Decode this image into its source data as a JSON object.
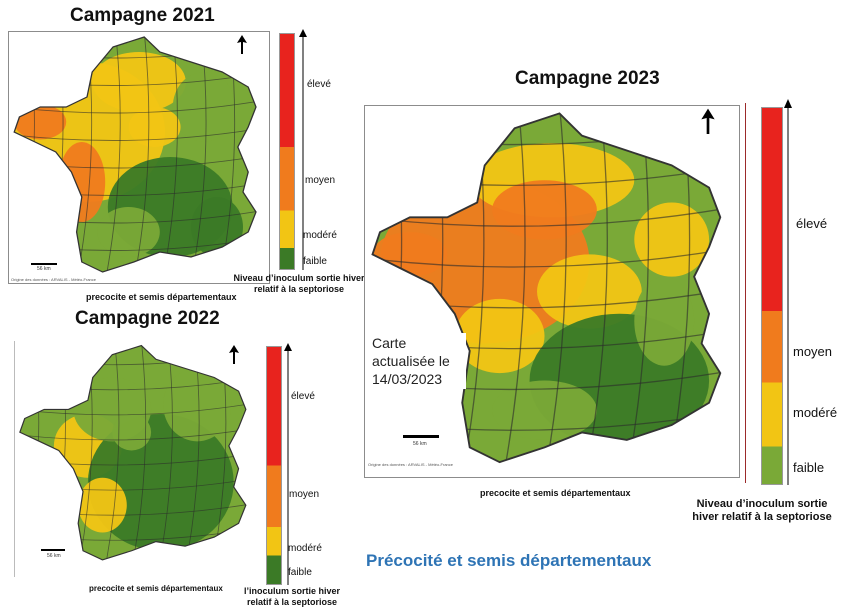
{
  "colors": {
    "eleve": "#e8231e",
    "moyen": "#f07b1d",
    "modere": "#f2c514",
    "faible_light": "#7aa937",
    "faible_dark": "#3b7a26",
    "footer": "#2e74b5"
  },
  "icons": {
    "north_arrow": "north-arrow-icon"
  },
  "legend_levels": [
    "élevé",
    "moyen",
    "modéré",
    "faible"
  ],
  "maps": [
    {
      "title": "Campagne 2021",
      "caption": "precocite et semis départementaux",
      "credit": "Origine des données : ARVALIS - Météo-France",
      "scale": "56 km",
      "legend": {
        "high": "élevé",
        "medium": "moyen",
        "moderate": "modéré",
        "low": "faible"
      },
      "legend_title_line1": "Niveau d’inoculum sortie hiver",
      "legend_title_line2": "relatif à la septoriose"
    },
    {
      "title": "Campagne 2022",
      "caption": "precocite et semis départementaux",
      "scale": "56 km",
      "legend": {
        "high": "élevé",
        "medium": "moyen",
        "moderate": "modéré",
        "low": "faible"
      },
      "legend_title_line1": "l’inoculum sortie hiver",
      "legend_title_line2": "relatif à la septoriose"
    },
    {
      "title": "Campagne 2023",
      "caption": "precocite et semis départementaux",
      "credit": "Origine des données : ARVALIS - Météo-France",
      "scale": "56 km",
      "legend": {
        "high": "élevé",
        "medium": "moyen",
        "moderate": "modéré",
        "low": "faible"
      },
      "legend_title_line1": "Niveau d’inoculum  sortie",
      "legend_title_line2": "hiver relatif à la septoriose",
      "note": "Carte actualisée le 14/03/2023"
    }
  ],
  "footer": "Précocité et semis départementaux"
}
